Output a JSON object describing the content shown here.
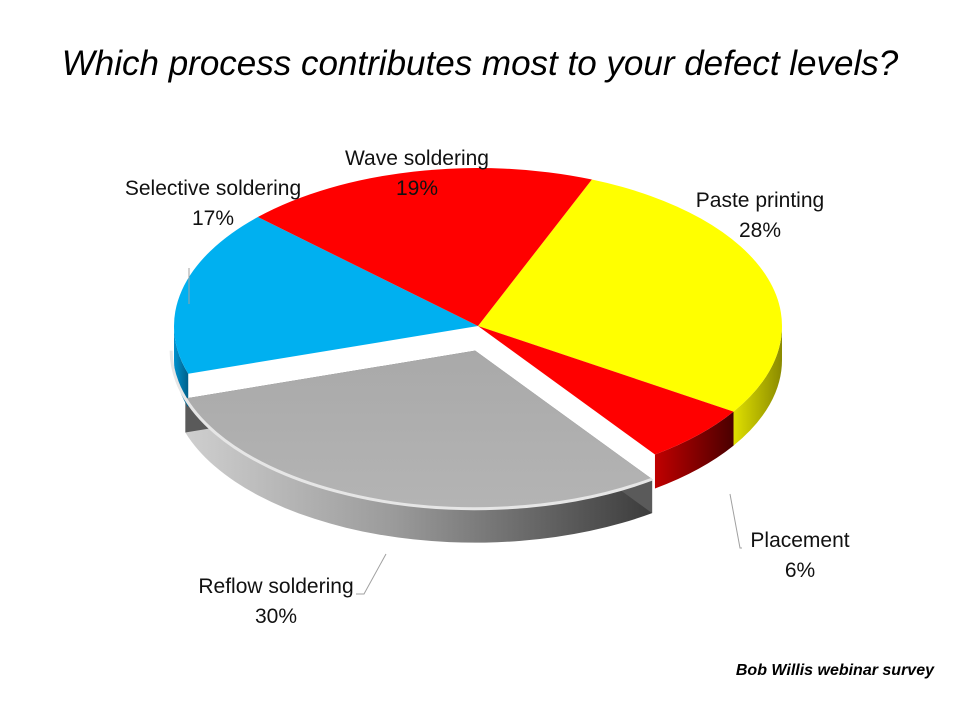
{
  "chart_data": {
    "type": "pie",
    "title": "Which process contributes most to your defect levels?",
    "slices": [
      {
        "label": "Paste printing",
        "value": 28,
        "value_label": "28%",
        "color": "#FFFF00"
      },
      {
        "label": "Placement",
        "value": 6,
        "value_label": "6%",
        "color": "#FF0000"
      },
      {
        "label": "Reflow soldering",
        "value": 30,
        "value_label": "30%",
        "color": "#A6A6A6"
      },
      {
        "label": "Selective soldering",
        "value": 17,
        "value_label": "17%",
        "color": "#00B0F0"
      },
      {
        "label": "Wave soldering",
        "value": 19,
        "value_label": "19%",
        "color": "#FF0000"
      }
    ],
    "exploded_slice": "Reflow soldering",
    "legend": "none",
    "style": "3d"
  },
  "credit": "Bob Willis webinar survey"
}
